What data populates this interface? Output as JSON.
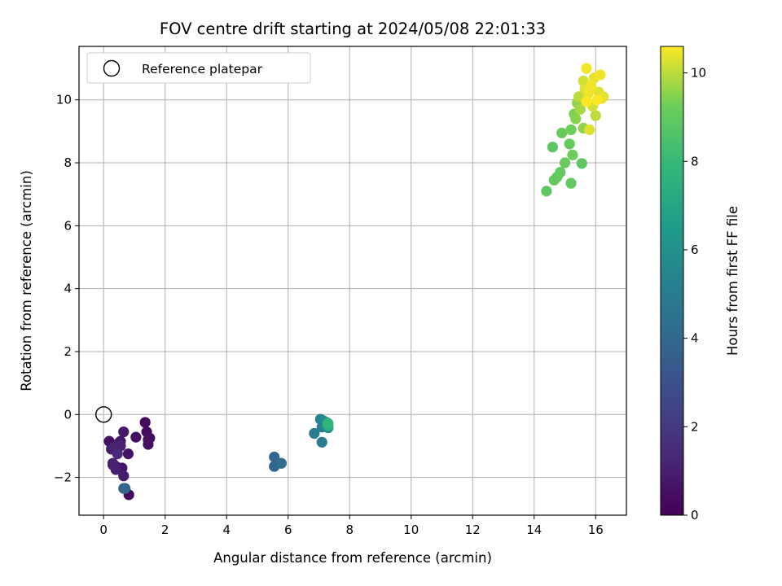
{
  "chart_data": {
    "type": "scatter",
    "title": "FOV centre drift starting at 2024/05/08 22:01:33",
    "xlabel": "Angular distance from reference (arcmin)",
    "ylabel": "Rotation from reference (arcmin)",
    "xlim": [
      -0.8,
      17.0
    ],
    "ylim": [
      -3.2,
      11.7
    ],
    "xticks": [
      0,
      2,
      4,
      6,
      8,
      10,
      12,
      14,
      16
    ],
    "yticks": [
      -2,
      0,
      2,
      4,
      6,
      8,
      10
    ],
    "grid": true,
    "legend": {
      "position": "top-left",
      "entries": [
        "Reference platepar"
      ]
    },
    "reference_point": {
      "label": "Reference platepar",
      "x": 0,
      "y": 0
    },
    "colorbar": {
      "label": "Hours from first FF file",
      "colormap": "viridis",
      "range": [
        0,
        10.6
      ],
      "ticks": [
        0,
        2,
        4,
        6,
        8,
        10
      ]
    },
    "series": [
      {
        "x": [
          0.18,
          0.25,
          0.3,
          0.35,
          0.4,
          0.45,
          0.5,
          0.55,
          0.6,
          0.65,
          0.3,
          0.4,
          0.55,
          0.65,
          0.8,
          1.05,
          1.35,
          1.4,
          1.45,
          1.45,
          1.5,
          0.65,
          0.7,
          0.82,
          5.55,
          5.55,
          5.78,
          6.85,
          7.05,
          7.1,
          7.1,
          7.15,
          7.2,
          7.25,
          7.3,
          7.3,
          7.3,
          14.4,
          14.6,
          14.65,
          14.75,
          14.85,
          14.9,
          15.0,
          15.15,
          15.2,
          15.2,
          15.25,
          15.3,
          15.35,
          15.4,
          15.45,
          15.5,
          15.55,
          15.6,
          15.6,
          15.65,
          15.7,
          15.75,
          15.8,
          15.85,
          15.9,
          15.95,
          16.0,
          16.05,
          16.1,
          16.15,
          16.2,
          16.25,
          15.7,
          15.8
        ],
        "y": [
          -0.85,
          -1.1,
          -1.55,
          -1.05,
          -1.65,
          -1.25,
          -0.9,
          -1.0,
          -1.7,
          -0.55,
          -1.6,
          -1.75,
          -0.85,
          -1.95,
          -1.25,
          -0.72,
          -0.25,
          -0.55,
          -0.8,
          -0.95,
          -0.75,
          -2.35,
          -2.35,
          -2.55,
          -1.35,
          -1.65,
          -1.55,
          -0.6,
          -0.15,
          -0.4,
          -0.88,
          -0.2,
          -0.3,
          -0.25,
          -0.35,
          -0.42,
          -0.28,
          7.1,
          8.5,
          7.45,
          7.55,
          7.7,
          8.95,
          8.0,
          8.6,
          7.35,
          9.05,
          8.25,
          9.55,
          9.4,
          9.9,
          10.1,
          9.7,
          7.98,
          10.6,
          9.1,
          10.35,
          11.0,
          10.2,
          9.05,
          10.45,
          9.8,
          10.7,
          9.5,
          10.0,
          10.25,
          10.8,
          10.05,
          10.1,
          9.95,
          10.3
        ],
        "color_values": [
          0.5,
          0.8,
          1.0,
          1.2,
          0.7,
          1.4,
          0.9,
          1.1,
          0.6,
          0.8,
          1.1,
          1.0,
          0.7,
          0.9,
          0.6,
          0.4,
          0.3,
          0.35,
          0.5,
          0.45,
          0.4,
          4.0,
          3.9,
          0.3,
          3.9,
          3.8,
          4.2,
          5.0,
          5.2,
          5.3,
          5.1,
          5.5,
          5.6,
          6.0,
          7.5,
          5.8,
          7.8,
          8.9,
          8.9,
          9.0,
          9.0,
          9.0,
          9.1,
          9.1,
          9.1,
          9.0,
          9.2,
          9.2,
          9.4,
          9.5,
          9.6,
          10.0,
          9.8,
          8.9,
          10.2,
          9.6,
          10.3,
          10.5,
          10.4,
          10.3,
          10.5,
          10.2,
          10.4,
          10.0,
          10.6,
          10.3,
          10.5,
          10.4,
          10.3,
          10.6,
          10.5
        ]
      }
    ]
  }
}
